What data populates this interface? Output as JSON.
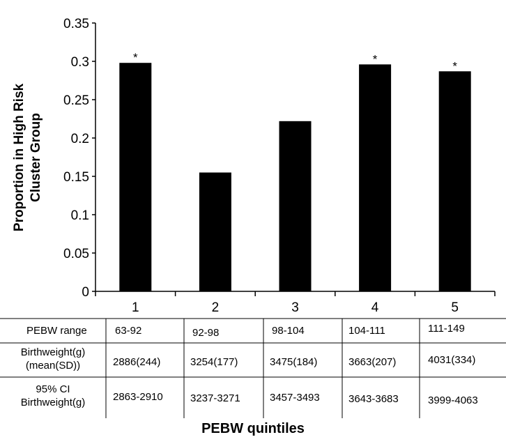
{
  "chart_data": {
    "type": "bar",
    "title": "",
    "xlabel": "PEBW quintiles",
    "ylabel_lines": [
      "Proportion in High Risk",
      "Cluster Group"
    ],
    "categories": [
      "1",
      "2",
      "3",
      "4",
      "5"
    ],
    "values": [
      0.298,
      0.155,
      0.222,
      0.296,
      0.287
    ],
    "annotations": [
      "*",
      "",
      "",
      "*",
      "*"
    ],
    "ylim": [
      0,
      0.35
    ],
    "yticks": [
      0,
      0.05,
      0.1,
      0.15,
      0.2,
      0.25,
      0.3,
      0.35
    ],
    "ytick_labels": [
      "0",
      "0.05",
      "0.1",
      "0.15",
      "0.2",
      "0.25",
      "0.3",
      "0.35"
    ],
    "bar_color": "#000000",
    "grid": false
  },
  "table": {
    "rows": [
      {
        "header": "PEBW range",
        "cells": [
          "63-92",
          "92-98",
          "98-104",
          "104-111",
          "111-149"
        ]
      },
      {
        "header_lines": [
          "Birthweight(g)",
          "(mean(SD))"
        ],
        "cells": [
          "2886(244)",
          "3254(177)",
          "3475(184)",
          "3663(207)",
          "4031(334)"
        ]
      },
      {
        "header_lines": [
          "95% CI",
          "Birthweight(g)"
        ],
        "cells": [
          "2863-2910",
          "3237-3271",
          "3457-3493",
          "3643-3683",
          "3999-4063"
        ]
      }
    ]
  }
}
